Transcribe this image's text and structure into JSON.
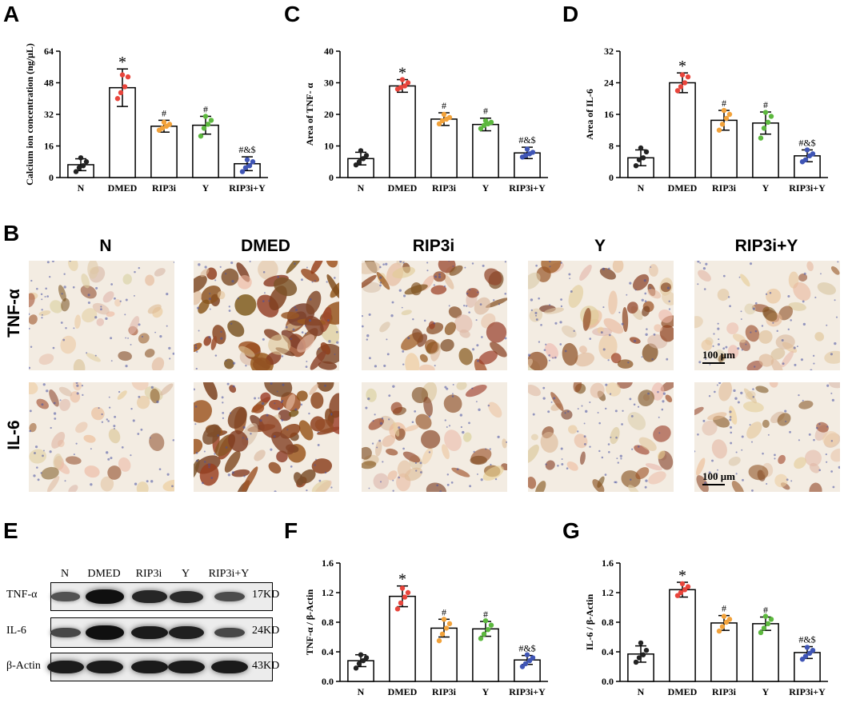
{
  "panel_letters": {
    "A": "A",
    "B": "B",
    "C": "C",
    "D": "D",
    "E": "E",
    "F": "F",
    "G": "G"
  },
  "colors": {
    "N": "#222222",
    "DMED": "#e8453c",
    "RIP3i": "#f2a23a",
    "Y": "#5cb83e",
    "RIP3i+Y": "#3f55b5"
  },
  "chart_data": [
    {
      "panel": "A",
      "type": "bar",
      "categories": [
        "N",
        "DMED",
        "RIP3i",
        "Y",
        "RIP3i+Y"
      ],
      "values": [
        6.5,
        45.5,
        26.0,
        26.5,
        7.0
      ],
      "errors": [
        3.0,
        9.5,
        3.0,
        4.5,
        3.5
      ],
      "points": [
        [
          3,
          5,
          6,
          8,
          10
        ],
        [
          40,
          43,
          46,
          51,
          52
        ],
        [
          24,
          25,
          26,
          27,
          28
        ],
        [
          21,
          25,
          27,
          29,
          31
        ],
        [
          3,
          5,
          6,
          8,
          9
        ]
      ],
      "annotations": [
        "",
        "*",
        "#",
        "#",
        "#&$"
      ],
      "ylabel": "Calcium ion concentration (ng/μL)",
      "yticks": [
        0,
        16,
        32,
        48,
        64
      ],
      "ylim": [
        0,
        64
      ]
    },
    {
      "panel": "C",
      "type": "bar",
      "categories": [
        "N",
        "DMED",
        "RIP3i",
        "Y",
        "RIP3i+Y"
      ],
      "values": [
        6.0,
        29.0,
        18.5,
        16.8,
        7.8
      ],
      "errors": [
        2.0,
        2.0,
        2.0,
        2.0,
        1.8
      ],
      "points": [
        [
          4,
          5,
          6,
          7,
          8.5
        ],
        [
          28,
          28.5,
          29,
          30,
          31
        ],
        [
          17,
          18,
          18.5,
          19,
          20
        ],
        [
          15.5,
          16.5,
          17,
          17.5,
          18
        ],
        [
          6.5,
          7,
          7.5,
          8,
          9
        ]
      ],
      "annotations": [
        "",
        "*",
        "#",
        "#",
        "#&$"
      ],
      "ylabel": "Area of TNF- α",
      "yticks": [
        0,
        10,
        20,
        30,
        40
      ],
      "ylim": [
        0,
        40
      ]
    },
    {
      "panel": "D",
      "type": "bar",
      "categories": [
        "N",
        "DMED",
        "RIP3i",
        "Y",
        "RIP3i+Y"
      ],
      "values": [
        5.0,
        24.0,
        14.5,
        13.8,
        5.5
      ],
      "errors": [
        2.0,
        2.5,
        2.5,
        2.8,
        1.5
      ],
      "points": [
        [
          3,
          4.5,
          5,
          6.5,
          7.5
        ],
        [
          22,
          23,
          24,
          25.5,
          26
        ],
        [
          12,
          13.5,
          15,
          16,
          17
        ],
        [
          10,
          12.5,
          14,
          15.5,
          16.5
        ],
        [
          4,
          4.5,
          5.5,
          6,
          7
        ]
      ],
      "annotations": [
        "",
        "*",
        "#",
        "#",
        "#&$"
      ],
      "ylabel": "Area of IL-6",
      "yticks": [
        0,
        8,
        16,
        24,
        32
      ],
      "ylim": [
        0,
        32
      ]
    },
    {
      "panel": "F",
      "type": "bar",
      "categories": [
        "N",
        "DMED",
        "RIP3i",
        "Y",
        "RIP3i+Y"
      ],
      "values": [
        0.28,
        1.15,
        0.72,
        0.71,
        0.29
      ],
      "errors": [
        0.08,
        0.14,
        0.12,
        0.1,
        0.06
      ],
      "points": [
        [
          0.18,
          0.24,
          0.28,
          0.32,
          0.36
        ],
        [
          0.98,
          1.06,
          1.14,
          1.2,
          1.26
        ],
        [
          0.55,
          0.64,
          0.72,
          0.78,
          0.84
        ],
        [
          0.58,
          0.64,
          0.7,
          0.76,
          0.82
        ],
        [
          0.2,
          0.24,
          0.28,
          0.32,
          0.36
        ]
      ],
      "annotations": [
        "",
        "*",
        "#",
        "#",
        "#&$"
      ],
      "ylabel": "TNF-α / β-Actin",
      "yticks": [
        "0.0",
        "0.4",
        "0.8",
        "1.2",
        "1.6"
      ],
      "ylim": [
        0,
        1.6
      ]
    },
    {
      "panel": "G",
      "type": "bar",
      "categories": [
        "N",
        "DMED",
        "RIP3i",
        "Y",
        "RIP3i+Y"
      ],
      "values": [
        0.37,
        1.24,
        0.79,
        0.78,
        0.39
      ],
      "errors": [
        0.11,
        0.1,
        0.1,
        0.09,
        0.08
      ],
      "points": [
        [
          0.26,
          0.32,
          0.36,
          0.42,
          0.52
        ],
        [
          1.16,
          1.2,
          1.24,
          1.28,
          1.32
        ],
        [
          0.68,
          0.74,
          0.8,
          0.84,
          0.88
        ],
        [
          0.66,
          0.72,
          0.78,
          0.84,
          0.88
        ],
        [
          0.3,
          0.34,
          0.38,
          0.42,
          0.46
        ]
      ],
      "annotations": [
        "",
        "*",
        "#",
        "#",
        "#&$"
      ],
      "ylabel": "IL-6 / β-Actin",
      "yticks": [
        "0.0",
        "0.4",
        "0.8",
        "1.2",
        "1.6"
      ],
      "ylim": [
        0,
        1.6
      ]
    }
  ],
  "ihc": {
    "columns": [
      "N",
      "DMED",
      "RIP3i",
      "Y",
      "RIP3i+Y"
    ],
    "rows": [
      "TNF-α",
      "IL-6"
    ],
    "scale_bar": "100 μm",
    "stain_intensity": [
      [
        0.25,
        0.85,
        0.6,
        0.6,
        0.3
      ],
      [
        0.25,
        0.85,
        0.45,
        0.4,
        0.3
      ]
    ]
  },
  "western_blot": {
    "lanes": [
      "N",
      "DMED",
      "RIP3i",
      "Y",
      "RIP3i+Y"
    ],
    "blots": [
      {
        "label": "TNF-α",
        "kd": "17KD",
        "intensity": [
          0.35,
          0.95,
          0.75,
          0.7,
          0.4
        ]
      },
      {
        "label": "IL-6",
        "kd": "24KD",
        "intensity": [
          0.45,
          0.95,
          0.85,
          0.8,
          0.45
        ]
      },
      {
        "label": "β-Actin",
        "kd": "43KD",
        "intensity": [
          0.85,
          0.85,
          0.85,
          0.85,
          0.85
        ]
      }
    ]
  }
}
